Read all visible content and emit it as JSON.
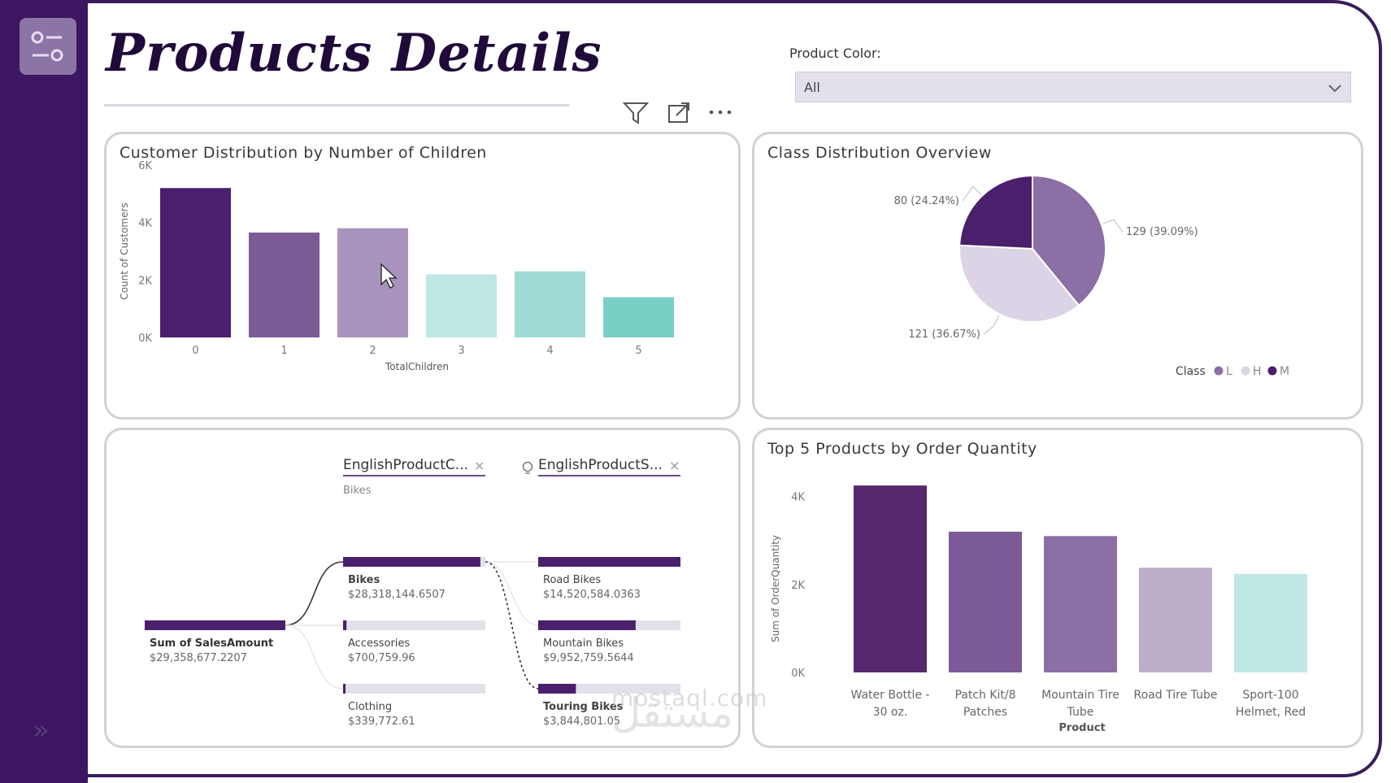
{
  "app": {
    "title": "Products Details"
  },
  "slicer": {
    "label": "Product Color:",
    "value": "All"
  },
  "toolbar": {
    "icons": [
      "filter-icon",
      "focus-mode-icon",
      "more-options-icon"
    ]
  },
  "watermark": {
    "latin": "mostaql.com",
    "arabic": "مستقل"
  },
  "colors": {
    "sidebar": "#3c1660",
    "dark_purple": "#4a1f6b",
    "mid_purple": "#7b5a95",
    "light_purple": "#a893bd",
    "lightest_purple": "#c9bcd8",
    "teal_light": "#bfe7e3",
    "teal_mid": "#9fdcd5",
    "teal": "#79cfc5"
  },
  "charts": {
    "children": {
      "title": "Customer Distribution by Number of Children"
    },
    "class": {
      "title": "Class Distribution Overview"
    },
    "top5": {
      "title": "Top 5 Products by Order Quantity"
    }
  },
  "decomposition": {
    "level1_header": "EnglishProductC...",
    "level1_filter": "Bikes",
    "level2_header": "EnglishProductS...",
    "root": {
      "label": "Sum of SalesAmount",
      "value": "$29,358,677.2207"
    },
    "categories": [
      {
        "label": "Bikes",
        "value": "$28,318,144.6507",
        "share": 0.965
      },
      {
        "label": "Accessories",
        "value": "$700,759.96",
        "share": 0.024
      },
      {
        "label": "Clothing",
        "value": "$339,772.61",
        "share": 0.012
      }
    ],
    "subcategories": [
      {
        "label": "Road Bikes",
        "value": "$14,520,584.0363",
        "share": 1.0
      },
      {
        "label": "Mountain Bikes",
        "value": "$9,952,759.5644",
        "share": 0.685
      },
      {
        "label": "Touring Bikes",
        "value": "$3,844,801.05",
        "share": 0.265
      }
    ]
  },
  "chart_data": [
    {
      "type": "bar",
      "title": "Customer Distribution by Number of Children",
      "xlabel": "TotalChildren",
      "ylabel": "Count of Customers",
      "categories": [
        "0",
        "1",
        "2",
        "3",
        "4",
        "5"
      ],
      "values": [
        5200,
        3650,
        3800,
        2200,
        2300,
        1400
      ],
      "colors": [
        "#4a1f6b",
        "#7b5a95",
        "#a893bd",
        "#bfe7e3",
        "#9fdcd5",
        "#79cfc5"
      ],
      "ylim": [
        0,
        6000
      ],
      "yticks": [
        "0K",
        "2K",
        "4K",
        "6K"
      ],
      "ytick_values": [
        0,
        2000,
        4000,
        6000
      ]
    },
    {
      "type": "pie",
      "title": "Class Distribution Overview",
      "legend_title": "Class",
      "slices": [
        {
          "name": "L",
          "value": 129,
          "label": "129 (39.09%)",
          "color": "#8c6fa5"
        },
        {
          "name": "H",
          "value": 121,
          "label": "121 (36.67%)",
          "color": "#dcd4e6"
        },
        {
          "name": "M",
          "value": 80,
          "label": "80 (24.24%)",
          "color": "#4a1f6b"
        }
      ]
    },
    {
      "type": "bar",
      "title": "Top 5 Products by Order Quantity",
      "xlabel": "Product",
      "ylabel": "Sum of OrderQuantity",
      "categories": [
        [
          "Water Bottle -",
          "30 oz."
        ],
        [
          "Patch Kit/8",
          "Patches"
        ],
        [
          "Mountain Tire",
          "Tube"
        ],
        [
          "Road Tire Tube"
        ],
        [
          "Sport-100",
          "Helmet, Red"
        ]
      ],
      "values": [
        4250,
        3200,
        3100,
        2380,
        2240
      ],
      "colors": [
        "#56286e",
        "#7b5a95",
        "#8c6fa5",
        "#bcaecb",
        "#bfe7e3"
      ],
      "ylim": [
        0,
        4400
      ],
      "yticks": [
        "0K",
        "2K",
        "4K"
      ],
      "ytick_values": [
        0,
        2000,
        4000
      ]
    }
  ]
}
